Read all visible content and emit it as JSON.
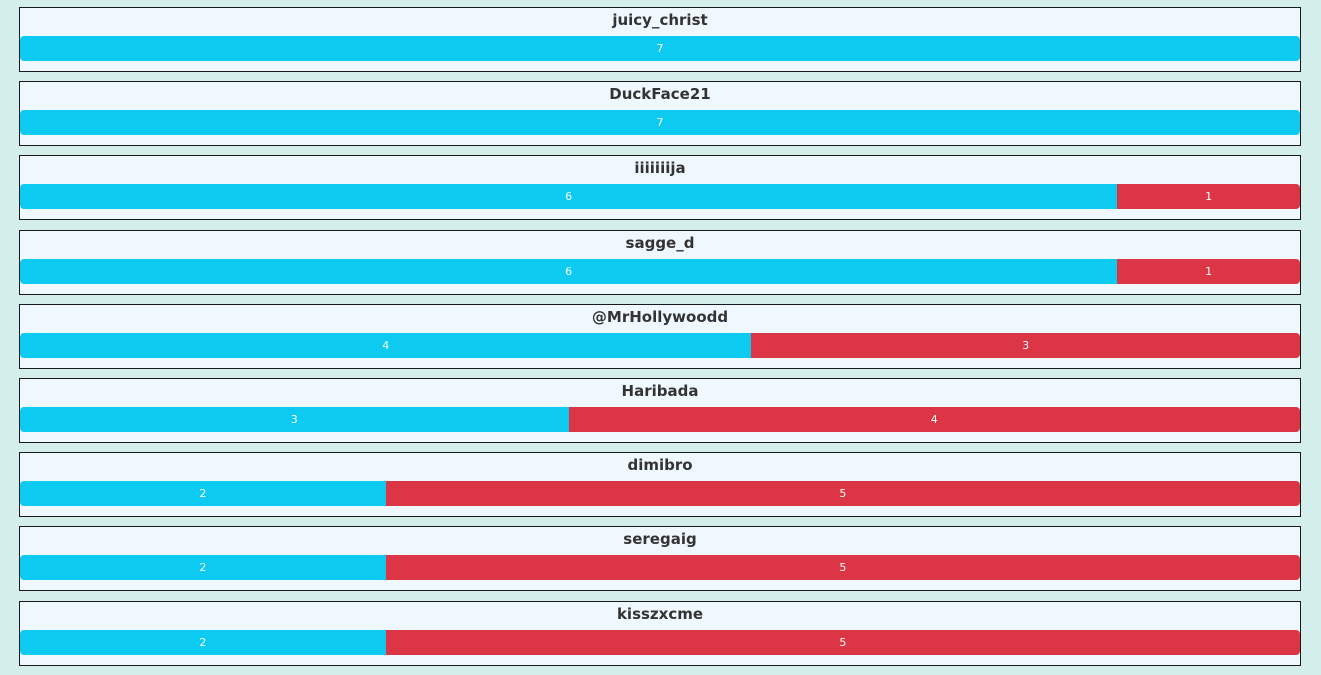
{
  "colors": {
    "background": "#d4eeeb",
    "card": "#f0f8ff",
    "wins": "#0dcaf0",
    "losses": "#dc3545"
  },
  "players": [
    {
      "name": "juicy_christ",
      "wins": 7,
      "losses": 0
    },
    {
      "name": "DuckFace21",
      "wins": 7,
      "losses": 0
    },
    {
      "name": "iiiiiiija",
      "wins": 6,
      "losses": 1
    },
    {
      "name": "sagge_d",
      "wins": 6,
      "losses": 1
    },
    {
      "name": "@MrHollywoodd",
      "wins": 4,
      "losses": 3
    },
    {
      "name": "Haribada",
      "wins": 3,
      "losses": 4
    },
    {
      "name": "dimibro",
      "wins": 2,
      "losses": 5
    },
    {
      "name": "seregaig",
      "wins": 2,
      "losses": 5
    },
    {
      "name": "kisszxcme",
      "wins": 2,
      "losses": 5
    }
  ]
}
